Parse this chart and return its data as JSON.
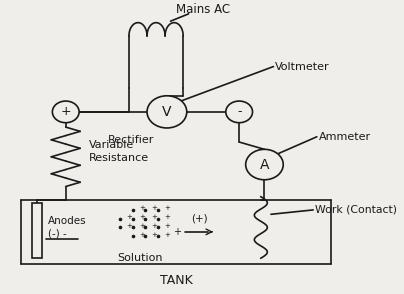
{
  "bg_color": "#f0eeea",
  "line_color": "#1a1a1a",
  "labels": {
    "mains_ac": "Mains AC",
    "rectifier": "Rectifier",
    "voltmeter": "Voltmeter",
    "ammeter": "Ammeter",
    "variable_resistance": "Variable\nResistance",
    "anodes": "Anodes\n(-) -",
    "solution": "Solution",
    "tank": "TANK",
    "work": "Work (Contact)",
    "plus": "+",
    "minus": "-",
    "V": "V",
    "A": "A"
  },
  "figsize": [
    4.04,
    2.94
  ],
  "dpi": 100
}
